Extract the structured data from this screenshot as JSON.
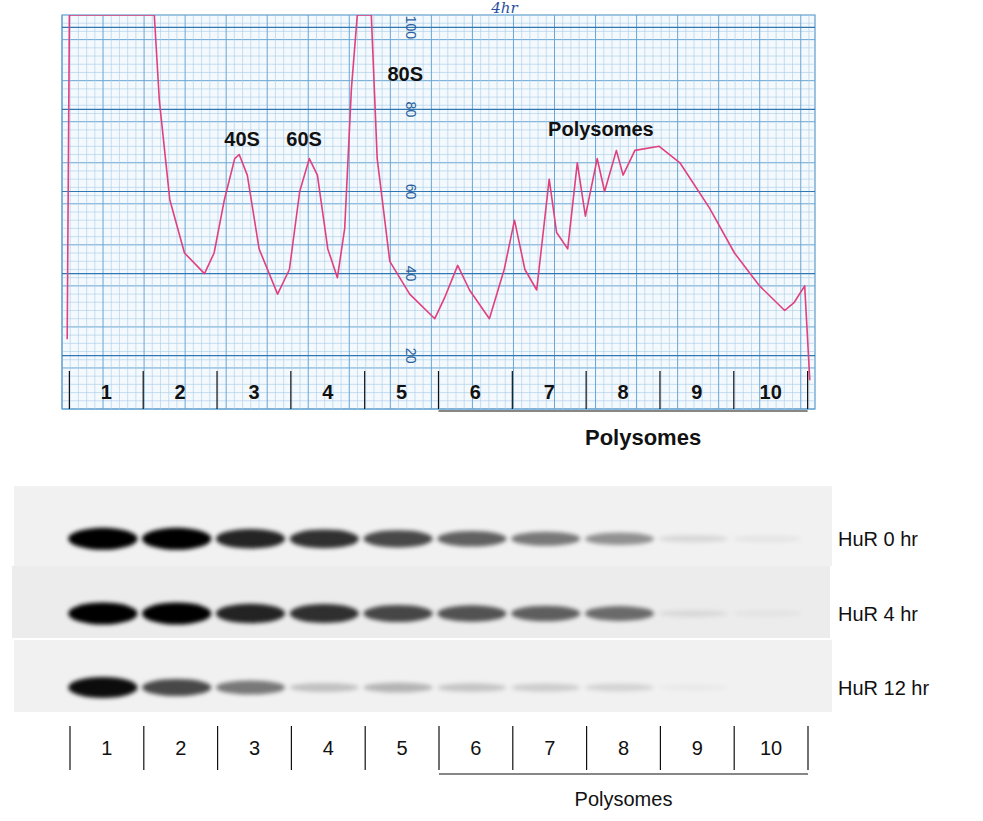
{
  "chart_data": [
    {
      "type": "line",
      "title": "4hr",
      "x": [
        -0.03,
        0,
        1.15,
        1.22,
        1.36,
        1.56,
        1.83,
        1.96,
        2.1,
        2.24,
        2.3,
        2.41,
        2.57,
        2.82,
        2.98,
        3.12,
        3.25,
        3.36,
        3.5,
        3.63,
        3.73,
        3.82,
        3.9,
        4.09,
        4.17,
        4.34,
        4.61,
        4.95,
        5.08,
        5.26,
        5.42,
        5.69,
        5.89,
        6.03,
        6.17,
        6.33,
        6.5,
        6.6,
        6.75,
        6.88,
        6.99,
        7.15,
        7.25,
        7.41,
        7.5,
        7.66,
        7.99,
        8.27,
        8.67,
        9.01,
        9.35,
        9.69,
        9.82,
        9.96,
        10.03
      ],
      "values": [
        24,
        103,
        103,
        82,
        58,
        45,
        40,
        45,
        58,
        68,
        69,
        64,
        46,
        35,
        41,
        60,
        68,
        64,
        46,
        39,
        51,
        85,
        103,
        103,
        68,
        43,
        35,
        29,
        34,
        42,
        36,
        29,
        41,
        53,
        41,
        36,
        63,
        50,
        46,
        67,
        54,
        68,
        60,
        70,
        64,
        70,
        71,
        67,
        56,
        45,
        37,
        31,
        33,
        37,
        14
      ],
      "color": "#e0407e",
      "xlim": [
        -0.1,
        10.1
      ],
      "ylim": [
        7,
        103
      ],
      "yticks": [
        20,
        40,
        60,
        80,
        100
      ],
      "xticks": [
        {
          "value": 0.5,
          "label": "1"
        },
        {
          "value": 1.5,
          "label": "2"
        },
        {
          "value": 2.5,
          "label": "3"
        },
        {
          "value": 3.5,
          "label": "4"
        },
        {
          "value": 4.5,
          "label": "5"
        },
        {
          "value": 5.5,
          "label": "6"
        },
        {
          "value": 6.5,
          "label": "7"
        },
        {
          "value": 7.5,
          "label": "8"
        },
        {
          "value": 8.5,
          "label": "9"
        },
        {
          "value": 9.5,
          "label": "10"
        }
      ],
      "grid": true,
      "fraction_boundaries": [
        0,
        1,
        2,
        3,
        4,
        5,
        6,
        7,
        8,
        9,
        10
      ],
      "annotations": [
        {
          "text": "40S",
          "x": 2.34,
          "y": 71
        },
        {
          "text": "60S",
          "x": 3.18,
          "y": 71
        },
        {
          "text": "80S",
          "x": 4.55,
          "y": 87
        },
        {
          "text": "Polysomes",
          "x": 7.2,
          "y": 73.5
        }
      ],
      "bracket": {
        "text": "Polysomes",
        "from": 5,
        "to": 10
      }
    },
    {
      "type": "blot",
      "categories": [
        "1",
        "2",
        "3",
        "4",
        "5",
        "6",
        "7",
        "8",
        "9",
        "10"
      ],
      "series": [
        {
          "name": "HuR 0 hr",
          "values": [
            100,
            100,
            85,
            80,
            70,
            60,
            50,
            40,
            10,
            5
          ]
        },
        {
          "name": "HuR 4 hr",
          "values": [
            100,
            100,
            85,
            80,
            70,
            65,
            60,
            55,
            8,
            4
          ]
        },
        {
          "name": "HuR 12 hr",
          "values": [
            95,
            70,
            50,
            20,
            25,
            18,
            15,
            12,
            3,
            0
          ]
        }
      ],
      "bracket": {
        "text": "Polysomes",
        "from": 5,
        "to": 10
      }
    }
  ]
}
